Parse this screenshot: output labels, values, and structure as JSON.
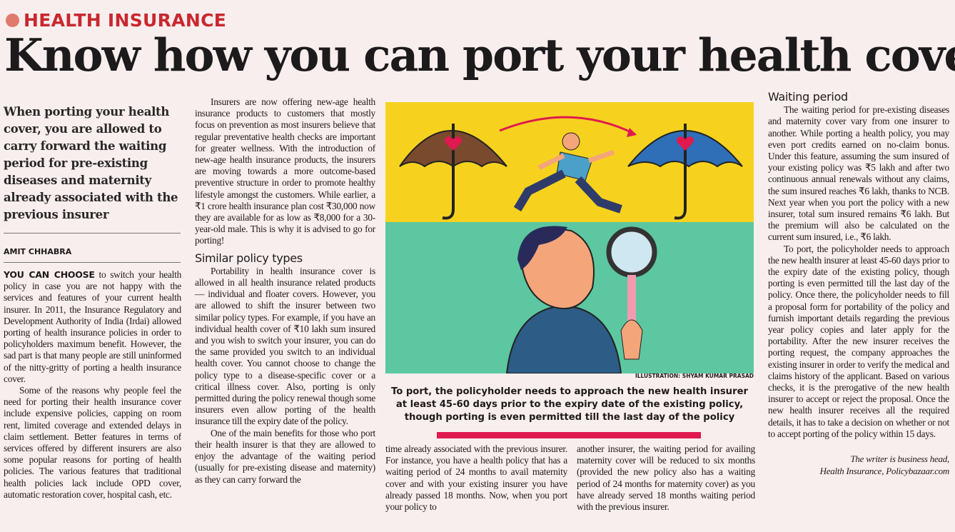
{
  "section": {
    "label": "HEALTH INSURANCE",
    "color": "#c8282f",
    "dot_color": "#e07a6c"
  },
  "headline": "Know how you can port your health cover",
  "deck": "When porting your health cover, you are allowed to carry forward the waiting period for pre-existing diseases and maternity already associated with the previous insurer",
  "author": "AMIT CHHABRA",
  "col1": {
    "lead": "YOU CAN CHOOSE",
    "p1": " to switch your health policy in case you are not happy with the services and features of your current health insurer. In 2011, the Insurance Regulatory and Development Authority of India (Irdai) allowed porting of health insurance policies in order to policyholders maximum benefit. However, the sad part is that many people are still uninformed of the nitty-gritty of porting a health insurance cover.",
    "p2": "Some of the reasons why people feel the need for porting their health insurance cover include expensive policies, capping on room rent, limited coverage and extended delays in claim settlement. Better features in terms of services offered by different insurers are also some popular reasons for porting of health policies. The various features that traditional health policies lack include OPD cover, automatic restoration cover, hospital cash, etc."
  },
  "col2": {
    "p1": "Insurers are now offering new-age health insurance products to customers that mostly focus on prevention as most insurers believe that regular preventative health checks are important for greater wellness. With the introduction of new-age health insurance products, the insurers are moving towards a more outcome-based preventive structure in order to promote healthy lifestyle amongst the customers. While earlier, a ₹1 crore health insurance plan cost ₹30,000 now they are available for as low as ₹8,000 for a 30-year-old male. This is why it is advised to go for porting!",
    "sub": "Similar policy types",
    "p2": "Portability in health insurance cover is allowed in all health insurance related products — individual and floater covers. However, you are allowed to shift the insurer between two similar policy types. For example, if you have an individual health cover of ₹10 lakh sum insured and you wish to switch your insurer, you can do the same provided you switch to an individual health cover. You cannot choose to change the policy type to a disease-specific cover or a critical illness cover. Also, porting is only permitted during the policy renewal though some insurers even allow porting of the health insurance till the expiry date of the policy.",
    "p3": "One of the main benefits for those who port their health insurer is that they are allowed to enjoy the advantage of the waiting period (usually for pre-existing disease and maternity) as they can carry forward the"
  },
  "illustration": {
    "credit": "ILLUSTRATION: SHYAM KUMAR PRASAD",
    "top_color": "#f6d21e",
    "bottom_color": "#5cc7a0"
  },
  "pull_quote": "To port, the policyholder needs to approach the new health insurer at least 45-60 days prior to the expiry date of the existing policy, though porting is even permitted till the last day of the policy",
  "col3a": "time already associated with the previous insurer. For instance, you have a health policy that has a waiting period of 24 months to avail maternity cover and with your existing insurer you have already passed 18 months. Now, when you port your policy to",
  "col3b": "another insurer, the waiting period for availing maternity cover will be reduced to six months (provided the new policy also has a waiting period of 24 months for maternity cover) as you have already served 18 months waiting period with the previous insurer.",
  "col4": {
    "sub": "Waiting period",
    "p1": "The waiting period for pre-existing diseases and maternity cover vary from one insurer to another. While porting a health policy, you may even port credits earned on no-claim bonus. Under this feature, assuming the sum insured of your existing policy was ₹5 lakh and after two continuous annual renewals without any claims, the sum insured reaches ₹6 lakh, thanks to NCB. Next year when you port the policy with a new insurer, total sum insured remains ₹6 lakh. But the premium will also be calculated on the current sum insured, i.e., ₹6 lakh.",
    "p2": "To port, the policyholder needs to approach the new health insurer at least 45-60 days prior to the expiry date of the existing policy, though porting is even permitted till the last day of the policy. Once there, the policyholder needs to fill a proposal form for portability of the policy and furnish important details regarding the previous year policy copies and later apply for the portability. After the new insurer receives the porting request, the company approaches the existing insurer in order to verify the medical and claims history of the applicant. Based on various checks, it is the prerogative of the new health insurer to accept or reject the proposal. Once the new health insurer receives all the required details, it has to take a decision on whether or not to accept porting of the policy within 15 days.",
    "sig1": "The writer is business head,",
    "sig2": "Health Insurance, Policybazaar.com"
  }
}
